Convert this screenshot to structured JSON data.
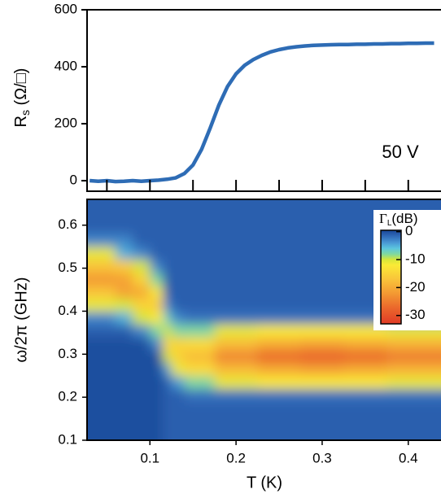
{
  "chart_data": [
    {
      "type": "line",
      "ylabel": {
        "main": "R",
        "sub": "s",
        "unit": "(Ω/□)"
      },
      "annotation": "50 V",
      "xlim": [
        0.027,
        0.438
      ],
      "ylim": [
        -37,
        600
      ],
      "xticks": [
        0.05,
        0.1,
        0.15,
        0.2,
        0.25,
        0.3,
        0.35,
        0.4
      ],
      "yticks": [
        0,
        200,
        400,
        600
      ],
      "x": [
        0.03,
        0.04,
        0.05,
        0.06,
        0.07,
        0.08,
        0.09,
        0.1,
        0.11,
        0.12,
        0.13,
        0.14,
        0.15,
        0.16,
        0.17,
        0.18,
        0.19,
        0.2,
        0.21,
        0.22,
        0.23,
        0.24,
        0.25,
        0.26,
        0.27,
        0.28,
        0.29,
        0.3,
        0.31,
        0.32,
        0.33,
        0.34,
        0.35,
        0.36,
        0.37,
        0.38,
        0.39,
        0.4,
        0.41,
        0.42,
        0.43
      ],
      "series": [
        {
          "color": "#2e6cb5",
          "values": [
            0,
            -2,
            0,
            -3,
            -2,
            0,
            -2,
            0,
            2,
            5,
            10,
            25,
            55,
            110,
            185,
            265,
            330,
            375,
            405,
            425,
            440,
            452,
            460,
            466,
            470,
            473,
            475,
            476,
            477,
            478,
            478,
            479,
            479,
            480,
            480,
            481,
            481,
            482,
            482,
            483,
            483
          ]
        }
      ]
    },
    {
      "type": "heatmap",
      "xlabel": "T (K)",
      "ylabel": "ω/2π (GHz)",
      "colorbar_label": {
        "main": "Γ",
        "sub": "L",
        "unit": "(dB)"
      },
      "xlim": [
        0.027,
        0.438
      ],
      "ylim": [
        0.1,
        0.66
      ],
      "xticks": [
        0.1,
        0.2,
        0.3,
        0.4
      ],
      "yticks": [
        0.1,
        0.2,
        0.3,
        0.4,
        0.5,
        0.6
      ],
      "clim": [
        -33,
        0.5
      ],
      "cticks": [
        0,
        -10,
        -20,
        -30
      ],
      "colormap": [
        [
          0.5,
          "#1b4b9b"
        ],
        [
          0,
          "#1e4f9f"
        ],
        [
          -1,
          "#2a5fae"
        ],
        [
          -2,
          "#3471bd"
        ],
        [
          -4,
          "#4a9ad6"
        ],
        [
          -6,
          "#5cc6de"
        ],
        [
          -8,
          "#7fd8a0"
        ],
        [
          -10,
          "#d6e63a"
        ],
        [
          -12,
          "#faea36"
        ],
        [
          -17,
          "#f9c43a"
        ],
        [
          -22,
          "#f39a33"
        ],
        [
          -27,
          "#eb6a2c"
        ],
        [
          -33,
          "#e03a26"
        ]
      ],
      "x": [
        0.03,
        0.05,
        0.07,
        0.09,
        0.11,
        0.12,
        0.13,
        0.15,
        0.2,
        0.25,
        0.3,
        0.35,
        0.4,
        0.43
      ],
      "y": [
        0.115,
        0.145,
        0.175,
        0.205,
        0.235,
        0.265,
        0.295,
        0.325,
        0.355,
        0.385,
        0.415,
        0.445,
        0.475,
        0.505,
        0.535,
        0.565,
        0.595,
        0.625,
        0.655
      ],
      "z": [
        [
          0,
          0,
          0,
          0,
          0,
          -1,
          -1,
          -1,
          -1,
          -1,
          -1,
          -1,
          -1,
          -1
        ],
        [
          0,
          0,
          0,
          0,
          0,
          -1,
          -1,
          -1,
          -1,
          -1,
          -1,
          -1,
          -1,
          -1
        ],
        [
          0,
          0,
          0,
          0,
          0,
          -1,
          -1,
          -1,
          -1,
          -1,
          -1,
          -1,
          -1,
          -1
        ],
        [
          0,
          0,
          0,
          0,
          0,
          -1,
          -1,
          -2,
          -2,
          -2,
          -2,
          -2,
          -2,
          -2
        ],
        [
          0,
          0,
          0,
          0,
          0,
          -1,
          -4,
          -8,
          -11,
          -12,
          -12,
          -12,
          -11,
          -11
        ],
        [
          0,
          0,
          0,
          0,
          0,
          -4,
          -11,
          -14,
          -18,
          -20,
          -21,
          -20,
          -19,
          -19
        ],
        [
          0,
          0,
          0,
          0,
          0,
          -10,
          -15,
          -18,
          -24,
          -27,
          -28,
          -27,
          -25,
          -25
        ],
        [
          0,
          0,
          0,
          0,
          -3,
          -14,
          -15,
          -14,
          -18,
          -20,
          -21,
          -20,
          -19,
          -19
        ],
        [
          -1,
          -1,
          -1,
          -3,
          -8,
          -10,
          -8,
          -8,
          -11,
          -12,
          -12,
          -12,
          -11,
          -11
        ],
        [
          -3,
          -3,
          -5,
          -10,
          -12,
          -7,
          -3,
          -2,
          -2,
          -2,
          -2,
          -2,
          -2,
          -2
        ],
        [
          -11,
          -11,
          -10,
          -15,
          -16,
          -3,
          -1,
          -1,
          -1,
          -1,
          -1,
          -1,
          -1,
          -1
        ],
        [
          -17,
          -17,
          -21,
          -20,
          -12,
          -1,
          -1,
          -1,
          -1,
          -1,
          -1,
          -1,
          -1,
          -1
        ],
        [
          -22,
          -22,
          -21,
          -15,
          -8,
          -1,
          -1,
          -1,
          -1,
          -1,
          -1,
          -1,
          -1,
          -1
        ],
        [
          -17,
          -17,
          -16,
          -10,
          -3,
          -1,
          -1,
          -1,
          -1,
          -1,
          -1,
          -1,
          -1,
          -1
        ],
        [
          -11,
          -11,
          -5,
          -3,
          -1,
          -1,
          -1,
          -1,
          -1,
          -1,
          -1,
          -1,
          -1,
          -1
        ],
        [
          -3,
          -3,
          -3,
          -1,
          -1,
          -1,
          -1,
          -1,
          -1,
          -1,
          -1,
          -1,
          -1,
          -1
        ],
        [
          -1,
          -1,
          -1,
          -1,
          -1,
          -1,
          -1,
          -1,
          -1,
          -1,
          -1,
          -1,
          -1,
          -1
        ],
        [
          -1,
          -1,
          -1,
          -1,
          -1,
          -1,
          -1,
          -1,
          -1,
          -1,
          -1,
          -1,
          -1,
          -1
        ],
        [
          -1,
          -1,
          -1,
          -1,
          -1,
          -1,
          -1,
          -1,
          -1,
          -1,
          -1,
          -1,
          -1,
          -1
        ]
      ]
    }
  ]
}
